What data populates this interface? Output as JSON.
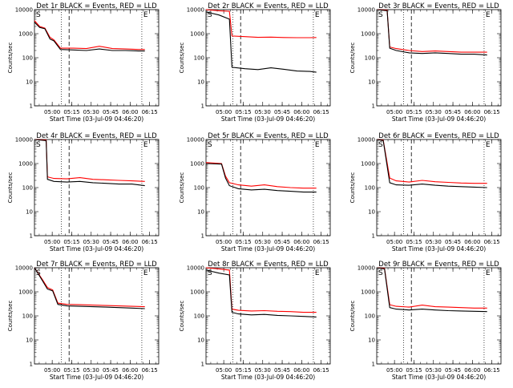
{
  "chart_data": {
    "type": "line",
    "grid_layout": "3x3",
    "xlabel": "Start Time (03-Jul-09 04:46:20)",
    "ylabel": "Counts/sec",
    "y_scale": "log",
    "ylim": [
      1,
      10000
    ],
    "y_ticks": [
      {
        "value": 1,
        "label": "1"
      },
      {
        "value": 10,
        "label": "10"
      },
      {
        "value": 100,
        "label": "100"
      },
      {
        "value": 1000,
        "label": "1000"
      },
      {
        "value": 10000,
        "label": "10000"
      }
    ],
    "x_ticks": [
      "05:00",
      "05:15",
      "05:30",
      "05:45",
      "06:00",
      "06:15"
    ],
    "xlim": [
      "04:46:20",
      "06:22:00"
    ],
    "corner_labels": {
      "left": "S",
      "right": "E"
    },
    "series_colors": {
      "events": "#000000",
      "lld": "#ff0000"
    },
    "markers": {
      "dotted_1": "05:07",
      "dashed": "05:13",
      "dotted_2": "06:09"
    },
    "panels": [
      {
        "title": "Det 1r BLACK = Events, RED = LLD",
        "events": [
          [
            0,
            3000
          ],
          [
            4,
            1800
          ],
          [
            8,
            1600
          ],
          [
            12,
            600
          ],
          [
            15,
            500
          ],
          [
            20,
            220
          ],
          [
            30,
            210
          ],
          [
            40,
            200
          ],
          [
            50,
            230
          ],
          [
            60,
            200
          ],
          [
            70,
            200
          ],
          [
            80,
            190
          ],
          [
            85,
            190
          ]
        ],
        "lld": [
          [
            0,
            3500
          ],
          [
            4,
            2000
          ],
          [
            8,
            1700
          ],
          [
            12,
            700
          ],
          [
            15,
            550
          ],
          [
            20,
            250
          ],
          [
            30,
            250
          ],
          [
            40,
            240
          ],
          [
            50,
            300
          ],
          [
            60,
            240
          ],
          [
            70,
            230
          ],
          [
            80,
            220
          ],
          [
            85,
            220
          ]
        ]
      },
      {
        "title": "Det 2r BLACK = Events, RED = LLD",
        "events": [
          [
            0,
            8000
          ],
          [
            10,
            6000
          ],
          [
            18,
            4000
          ],
          [
            20,
            40
          ],
          [
            30,
            35
          ],
          [
            40,
            32
          ],
          [
            50,
            38
          ],
          [
            60,
            33
          ],
          [
            70,
            28
          ],
          [
            80,
            27
          ],
          [
            85,
            25
          ]
        ],
        "lld": [
          [
            0,
            10000
          ],
          [
            10,
            9000
          ],
          [
            18,
            8500
          ],
          [
            20,
            800
          ],
          [
            30,
            750
          ],
          [
            40,
            700
          ],
          [
            50,
            720
          ],
          [
            60,
            690
          ],
          [
            70,
            680
          ],
          [
            80,
            680
          ],
          [
            85,
            690
          ]
        ]
      },
      {
        "title": "Det 3r BLACK = Events, RED = LLD",
        "events": [
          [
            0,
            10000
          ],
          [
            8,
            9000
          ],
          [
            10,
            250
          ],
          [
            15,
            200
          ],
          [
            25,
            160
          ],
          [
            35,
            150
          ],
          [
            45,
            160
          ],
          [
            55,
            150
          ],
          [
            65,
            140
          ],
          [
            75,
            140
          ],
          [
            85,
            130
          ]
        ],
        "lld": [
          [
            0,
            10000
          ],
          [
            8,
            9500
          ],
          [
            10,
            280
          ],
          [
            15,
            240
          ],
          [
            25,
            200
          ],
          [
            35,
            180
          ],
          [
            45,
            190
          ],
          [
            55,
            180
          ],
          [
            65,
            170
          ],
          [
            75,
            170
          ],
          [
            85,
            170
          ]
        ]
      },
      {
        "title": "Det 4r BLACK = Events, RED = LLD",
        "events": [
          [
            0,
            10000
          ],
          [
            9,
            9000
          ],
          [
            10,
            220
          ],
          [
            15,
            180
          ],
          [
            25,
            170
          ],
          [
            35,
            180
          ],
          [
            45,
            160
          ],
          [
            55,
            150
          ],
          [
            65,
            140
          ],
          [
            75,
            140
          ],
          [
            85,
            120
          ]
        ],
        "lld": [
          [
            0,
            10000
          ],
          [
            9,
            9500
          ],
          [
            10,
            280
          ],
          [
            15,
            240
          ],
          [
            25,
            230
          ],
          [
            35,
            260
          ],
          [
            45,
            220
          ],
          [
            55,
            210
          ],
          [
            65,
            200
          ],
          [
            75,
            190
          ],
          [
            85,
            180
          ]
        ]
      },
      {
        "title": "Det 5r BLACK = Events, RED = LLD",
        "events": [
          [
            0,
            1000
          ],
          [
            12,
            950
          ],
          [
            15,
            250
          ],
          [
            18,
            120
          ],
          [
            25,
            90
          ],
          [
            35,
            80
          ],
          [
            45,
            85
          ],
          [
            55,
            75
          ],
          [
            65,
            70
          ],
          [
            75,
            65
          ],
          [
            85,
            65
          ]
        ],
        "lld": [
          [
            0,
            1100
          ],
          [
            12,
            1000
          ],
          [
            15,
            300
          ],
          [
            18,
            160
          ],
          [
            25,
            130
          ],
          [
            35,
            115
          ],
          [
            45,
            130
          ],
          [
            55,
            110
          ],
          [
            65,
            100
          ],
          [
            75,
            95
          ],
          [
            85,
            95
          ]
        ]
      },
      {
        "title": "Det 6r BLACK = Events, RED = LLD",
        "events": [
          [
            0,
            10000
          ],
          [
            5,
            9000
          ],
          [
            10,
            160
          ],
          [
            15,
            130
          ],
          [
            25,
            125
          ],
          [
            35,
            140
          ],
          [
            45,
            125
          ],
          [
            55,
            115
          ],
          [
            65,
            110
          ],
          [
            75,
            105
          ],
          [
            85,
            100
          ]
        ],
        "lld": [
          [
            0,
            10000
          ],
          [
            5,
            9500
          ],
          [
            10,
            250
          ],
          [
            15,
            190
          ],
          [
            25,
            170
          ],
          [
            35,
            200
          ],
          [
            45,
            175
          ],
          [
            55,
            165
          ],
          [
            65,
            155
          ],
          [
            75,
            150
          ],
          [
            85,
            150
          ]
        ]
      },
      {
        "title": "Det 7r BLACK = Events, RED = LLD",
        "events": [
          [
            0,
            10000
          ],
          [
            6,
            3000
          ],
          [
            10,
            1300
          ],
          [
            14,
            1100
          ],
          [
            18,
            300
          ],
          [
            25,
            260
          ],
          [
            35,
            250
          ],
          [
            45,
            240
          ],
          [
            55,
            230
          ],
          [
            65,
            220
          ],
          [
            75,
            210
          ],
          [
            85,
            200
          ]
        ],
        "lld": [
          [
            0,
            10000
          ],
          [
            6,
            3300
          ],
          [
            10,
            1500
          ],
          [
            14,
            1200
          ],
          [
            18,
            340
          ],
          [
            25,
            300
          ],
          [
            35,
            290
          ],
          [
            45,
            280
          ],
          [
            55,
            270
          ],
          [
            65,
            260
          ],
          [
            75,
            250
          ],
          [
            85,
            240
          ]
        ]
      },
      {
        "title": "Det 8r BLACK = Events, RED = LLD",
        "events": [
          [
            0,
            8000
          ],
          [
            10,
            6000
          ],
          [
            18,
            5000
          ],
          [
            20,
            140
          ],
          [
            25,
            120
          ],
          [
            35,
            110
          ],
          [
            45,
            115
          ],
          [
            55,
            105
          ],
          [
            65,
            100
          ],
          [
            75,
            95
          ],
          [
            85,
            90
          ]
        ],
        "lld": [
          [
            0,
            10000
          ],
          [
            10,
            9000
          ],
          [
            18,
            8000
          ],
          [
            20,
            190
          ],
          [
            25,
            170
          ],
          [
            35,
            160
          ],
          [
            45,
            165
          ],
          [
            55,
            155
          ],
          [
            65,
            150
          ],
          [
            75,
            140
          ],
          [
            85,
            140
          ]
        ]
      },
      {
        "title": "Det 9r BLACK = Events, RED = LLD",
        "events": [
          [
            0,
            10000
          ],
          [
            6,
            9000
          ],
          [
            10,
            220
          ],
          [
            15,
            190
          ],
          [
            25,
            175
          ],
          [
            35,
            190
          ],
          [
            45,
            175
          ],
          [
            55,
            165
          ],
          [
            65,
            160
          ],
          [
            75,
            155
          ],
          [
            85,
            150
          ]
        ],
        "lld": [
          [
            0,
            10000
          ],
          [
            6,
            9500
          ],
          [
            10,
            290
          ],
          [
            15,
            250
          ],
          [
            25,
            230
          ],
          [
            35,
            280
          ],
          [
            45,
            240
          ],
          [
            55,
            230
          ],
          [
            65,
            220
          ],
          [
            75,
            210
          ],
          [
            85,
            210
          ]
        ]
      }
    ]
  }
}
